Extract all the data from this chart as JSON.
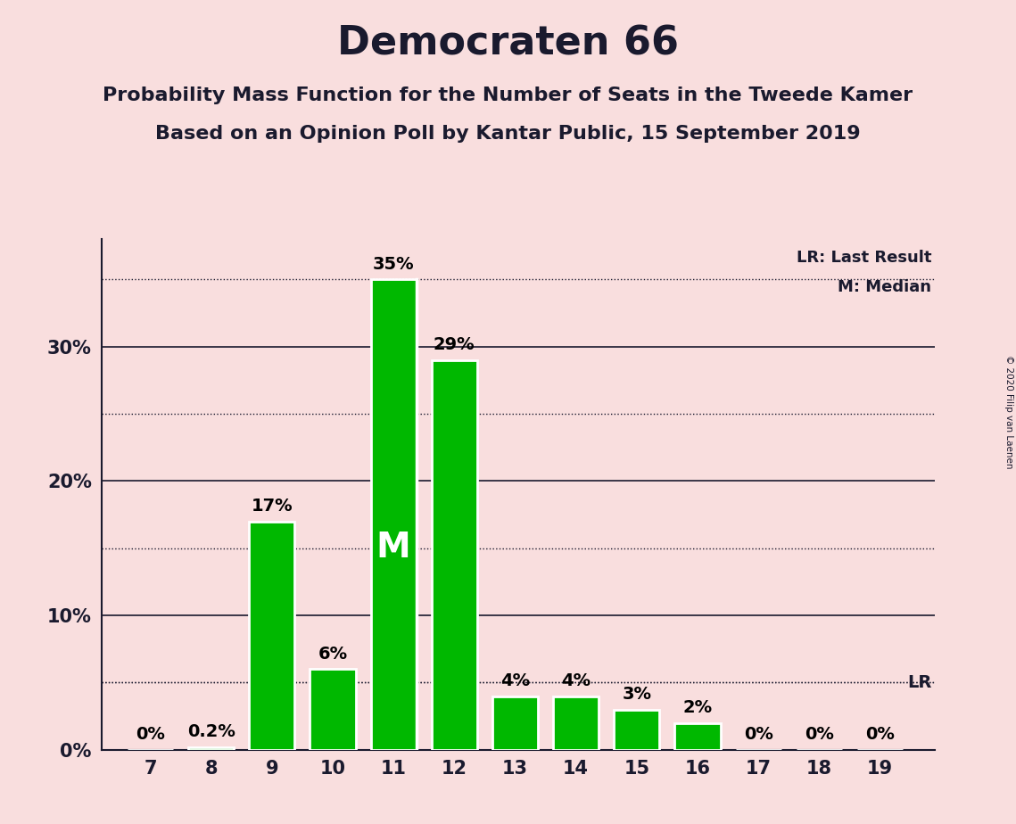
{
  "title": "Democraten 66",
  "subtitle1": "Probability Mass Function for the Number of Seats in the Tweede Kamer",
  "subtitle2": "Based on an Opinion Poll by Kantar Public, 15 September 2019",
  "seats": [
    7,
    8,
    9,
    10,
    11,
    12,
    13,
    14,
    15,
    16,
    17,
    18,
    19
  ],
  "probabilities": [
    0.0,
    0.2,
    17.0,
    6.0,
    35.0,
    29.0,
    4.0,
    4.0,
    3.0,
    2.0,
    0.0,
    0.0,
    0.0
  ],
  "labels": [
    "0%",
    "0.2%",
    "17%",
    "6%",
    "35%",
    "29%",
    "4%",
    "4%",
    "3%",
    "2%",
    "0%",
    "0%",
    "0%"
  ],
  "bar_color": "#00b800",
  "background_color": "#f9dede",
  "median_seat": 11,
  "last_result_value": 5.0,
  "ylim": [
    0,
    38
  ],
  "median_label": "M",
  "lr_label": "LR",
  "lr_legend": "LR: Last Result",
  "m_legend": "M: Median",
  "copyright": "© 2020 Filip van Laenen",
  "title_fontsize": 32,
  "subtitle_fontsize": 16,
  "bar_width": 0.75,
  "label_fontsize": 14,
  "tick_fontsize": 15,
  "median_label_fontsize": 28,
  "solid_lines": [
    10,
    20,
    30
  ],
  "dotted_lines": [
    5,
    15,
    25,
    35
  ],
  "ytick_positions": [
    0,
    10,
    20,
    30
  ],
  "ytick_labels": [
    "0%",
    "10%",
    "20%",
    "30%"
  ]
}
